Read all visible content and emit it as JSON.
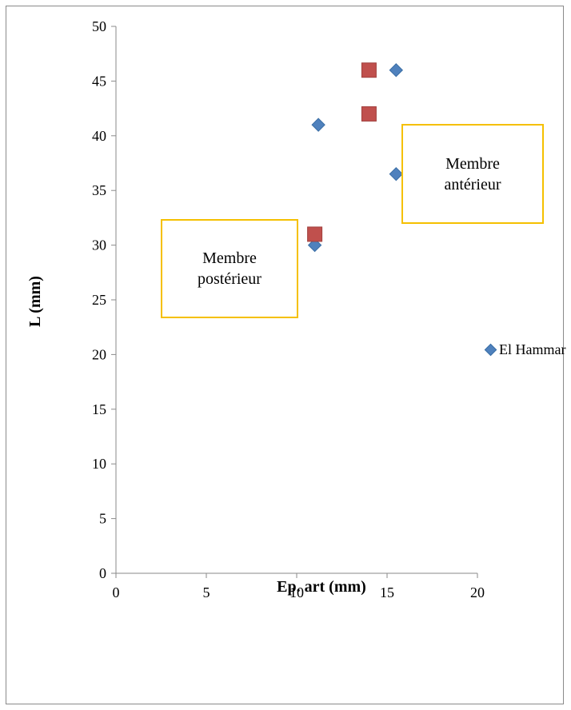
{
  "chart_data": {
    "type": "scatter",
    "xlabel": "Ep. art (mm)",
    "ylabel": "L (mm)",
    "xlim": [
      0,
      20
    ],
    "ylim": [
      0,
      50
    ],
    "xticks": [
      "0",
      "5",
      "10",
      "15",
      "20"
    ],
    "yticks": [
      "0",
      "5",
      "10",
      "15",
      "20",
      "25",
      "30",
      "35",
      "40",
      "45",
      "50"
    ],
    "grid": false,
    "legend_position": "right",
    "series": [
      {
        "name": "El Hammar",
        "marker": "diamond",
        "color": "#4f81bd",
        "points": [
          [
            11.0,
            30.0
          ],
          [
            11.2,
            41.0
          ],
          [
            15.5,
            46.0
          ],
          [
            15.5,
            36.5
          ]
        ]
      },
      {
        "marker": "square",
        "color": "#c0504d",
        "points": [
          [
            11.0,
            31.0
          ],
          [
            14.0,
            46.0
          ],
          [
            14.0,
            42.0
          ]
        ]
      }
    ],
    "annotations": [
      {
        "id": "anterior",
        "lines": [
          "Membre",
          "antérieur"
        ]
      },
      {
        "id": "posterior",
        "lines": [
          "Membre",
          "postérieur"
        ]
      }
    ]
  }
}
